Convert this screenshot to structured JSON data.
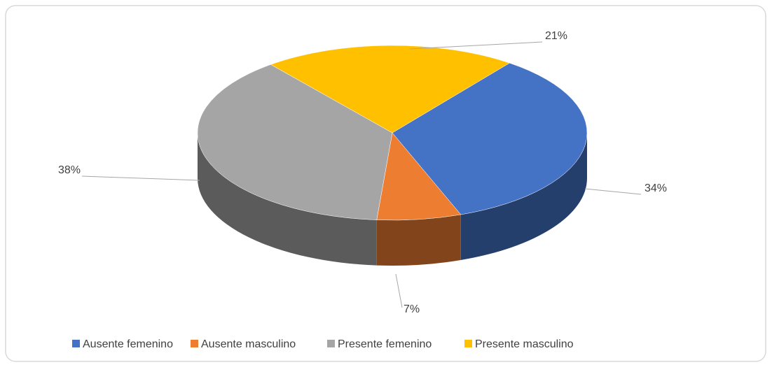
{
  "chart_data": {
    "type": "pie",
    "categories": [
      "Ausente femenino",
      "Ausente masculino",
      "Presente femenino",
      "Presente masculino"
    ],
    "values": [
      34,
      7,
      38,
      21
    ],
    "value_labels": [
      "34%",
      "7%",
      "38%",
      "21%"
    ],
    "colors": [
      "#4472c4",
      "#ed7d31",
      "#a5a5a5",
      "#ffc000"
    ],
    "legend": "bottom"
  }
}
